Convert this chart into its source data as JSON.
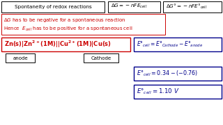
{
  "bg_color": "#ffffff",
  "dark_blue": "#00008B",
  "red_color": "#CC0000",
  "black": "#000000",
  "box1_text": "Spontaneity of redox reactions",
  "anode_label": "anode",
  "cathode_label": "Cathode"
}
